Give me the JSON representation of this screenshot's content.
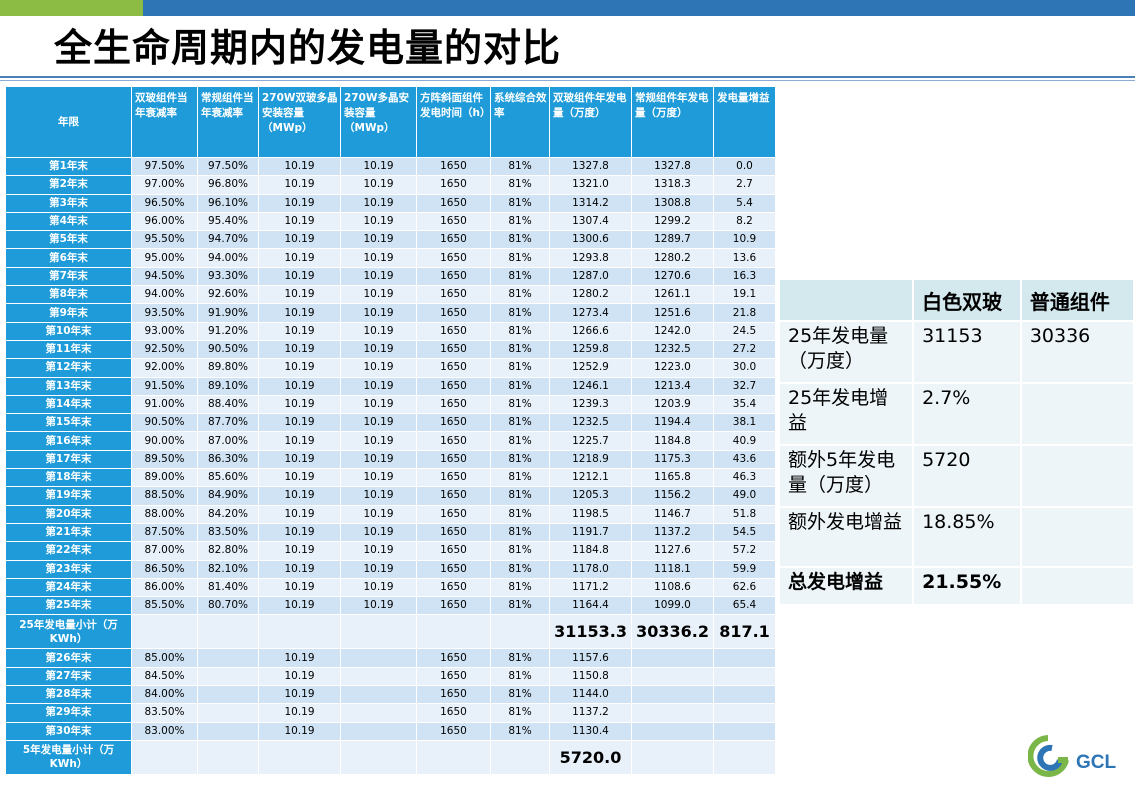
{
  "title": "全生命周期内的发电量的对比",
  "table": {
    "headers": [
      "年限",
      "双玻组件当年衰减率",
      "常规组件当年衰减率",
      "270W双玻多晶安装容量（MWp）",
      "270W多晶安装容量（MWp）",
      "方阵斜面组件发电时间（h）",
      "系统综合效率",
      "双玻组件年发电量（万度）",
      "常规组件年发电量（万度）",
      "发电量增益"
    ],
    "rows": [
      [
        "第1年末",
        "97.50%",
        "97.50%",
        "10.19",
        "10.19",
        "1650",
        "81%",
        "1327.8",
        "1327.8",
        "0.0"
      ],
      [
        "第2年末",
        "97.00%",
        "96.80%",
        "10.19",
        "10.19",
        "1650",
        "81%",
        "1321.0",
        "1318.3",
        "2.7"
      ],
      [
        "第3年末",
        "96.50%",
        "96.10%",
        "10.19",
        "10.19",
        "1650",
        "81%",
        "1314.2",
        "1308.8",
        "5.4"
      ],
      [
        "第4年末",
        "96.00%",
        "95.40%",
        "10.19",
        "10.19",
        "1650",
        "81%",
        "1307.4",
        "1299.2",
        "8.2"
      ],
      [
        "第5年末",
        "95.50%",
        "94.70%",
        "10.19",
        "10.19",
        "1650",
        "81%",
        "1300.6",
        "1289.7",
        "10.9"
      ],
      [
        "第6年末",
        "95.00%",
        "94.00%",
        "10.19",
        "10.19",
        "1650",
        "81%",
        "1293.8",
        "1280.2",
        "13.6"
      ],
      [
        "第7年末",
        "94.50%",
        "93.30%",
        "10.19",
        "10.19",
        "1650",
        "81%",
        "1287.0",
        "1270.6",
        "16.3"
      ],
      [
        "第8年末",
        "94.00%",
        "92.60%",
        "10.19",
        "10.19",
        "1650",
        "81%",
        "1280.2",
        "1261.1",
        "19.1"
      ],
      [
        "第9年末",
        "93.50%",
        "91.90%",
        "10.19",
        "10.19",
        "1650",
        "81%",
        "1273.4",
        "1251.6",
        "21.8"
      ],
      [
        "第10年末",
        "93.00%",
        "91.20%",
        "10.19",
        "10.19",
        "1650",
        "81%",
        "1266.6",
        "1242.0",
        "24.5"
      ],
      [
        "第11年末",
        "92.50%",
        "90.50%",
        "10.19",
        "10.19",
        "1650",
        "81%",
        "1259.8",
        "1232.5",
        "27.2"
      ],
      [
        "第12年末",
        "92.00%",
        "89.80%",
        "10.19",
        "10.19",
        "1650",
        "81%",
        "1252.9",
        "1223.0",
        "30.0"
      ],
      [
        "第13年末",
        "91.50%",
        "89.10%",
        "10.19",
        "10.19",
        "1650",
        "81%",
        "1246.1",
        "1213.4",
        "32.7"
      ],
      [
        "第14年末",
        "91.00%",
        "88.40%",
        "10.19",
        "10.19",
        "1650",
        "81%",
        "1239.3",
        "1203.9",
        "35.4"
      ],
      [
        "第15年末",
        "90.50%",
        "87.70%",
        "10.19",
        "10.19",
        "1650",
        "81%",
        "1232.5",
        "1194.4",
        "38.1"
      ],
      [
        "第16年末",
        "90.00%",
        "87.00%",
        "10.19",
        "10.19",
        "1650",
        "81%",
        "1225.7",
        "1184.8",
        "40.9"
      ],
      [
        "第17年末",
        "89.50%",
        "86.30%",
        "10.19",
        "10.19",
        "1650",
        "81%",
        "1218.9",
        "1175.3",
        "43.6"
      ],
      [
        "第18年末",
        "89.00%",
        "85.60%",
        "10.19",
        "10.19",
        "1650",
        "81%",
        "1212.1",
        "1165.8",
        "46.3"
      ],
      [
        "第19年末",
        "88.50%",
        "84.90%",
        "10.19",
        "10.19",
        "1650",
        "81%",
        "1205.3",
        "1156.2",
        "49.0"
      ],
      [
        "第20年末",
        "88.00%",
        "84.20%",
        "10.19",
        "10.19",
        "1650",
        "81%",
        "1198.5",
        "1146.7",
        "51.8"
      ],
      [
        "第21年末",
        "87.50%",
        "83.50%",
        "10.19",
        "10.19",
        "1650",
        "81%",
        "1191.7",
        "1137.2",
        "54.5"
      ],
      [
        "第22年末",
        "87.00%",
        "82.80%",
        "10.19",
        "10.19",
        "1650",
        "81%",
        "1184.8",
        "1127.6",
        "57.2"
      ],
      [
        "第23年末",
        "86.50%",
        "82.10%",
        "10.19",
        "10.19",
        "1650",
        "81%",
        "1178.0",
        "1118.1",
        "59.9"
      ],
      [
        "第24年末",
        "86.00%",
        "81.40%",
        "10.19",
        "10.19",
        "1650",
        "81%",
        "1171.2",
        "1108.6",
        "62.6"
      ],
      [
        "第25年末",
        "85.50%",
        "80.70%",
        "10.19",
        "10.19",
        "1650",
        "81%",
        "1164.4",
        "1099.0",
        "65.4"
      ]
    ],
    "subtotal25": {
      "label": "25年发电量小计（万KWh）",
      "bifacial": "31153.3",
      "regular": "30336.2",
      "gain": "817.1"
    },
    "rows_extra": [
      [
        "第26年末",
        "85.00%",
        "",
        "10.19",
        "",
        "1650",
        "81%",
        "1157.6",
        "",
        ""
      ],
      [
        "第27年末",
        "84.50%",
        "",
        "10.19",
        "",
        "1650",
        "81%",
        "1150.8",
        "",
        ""
      ],
      [
        "第28年末",
        "84.00%",
        "",
        "10.19",
        "",
        "1650",
        "81%",
        "1144.0",
        "",
        ""
      ],
      [
        "第29年末",
        "83.50%",
        "",
        "10.19",
        "",
        "1650",
        "81%",
        "1137.2",
        "",
        ""
      ],
      [
        "第30年末",
        "83.00%",
        "",
        "10.19",
        "",
        "1650",
        "81%",
        "1130.4",
        "",
        ""
      ]
    ],
    "subtotal5": {
      "label": "5年发电量小计（万KWh）",
      "bifacial": "5720.0"
    }
  },
  "summary": {
    "col_white": "白色双玻",
    "col_regular": "普通组件",
    "rows": [
      {
        "label": "25年发电量（万度）",
        "white": "31153",
        "regular": "30336"
      },
      {
        "label": "25年发电增益",
        "white": "2.7%",
        "regular": ""
      },
      {
        "label": "额外5年发电量（万度）",
        "white": "5720",
        "regular": ""
      },
      {
        "label": "额外发电增益",
        "white": "18.85%",
        "regular": ""
      },
      {
        "label": "总发电增益",
        "white": "21.55%",
        "regular": ""
      }
    ]
  },
  "logo": {
    "text": "GCL",
    "colors": {
      "green": "#7ab648",
      "blue": "#2e75b6"
    }
  }
}
